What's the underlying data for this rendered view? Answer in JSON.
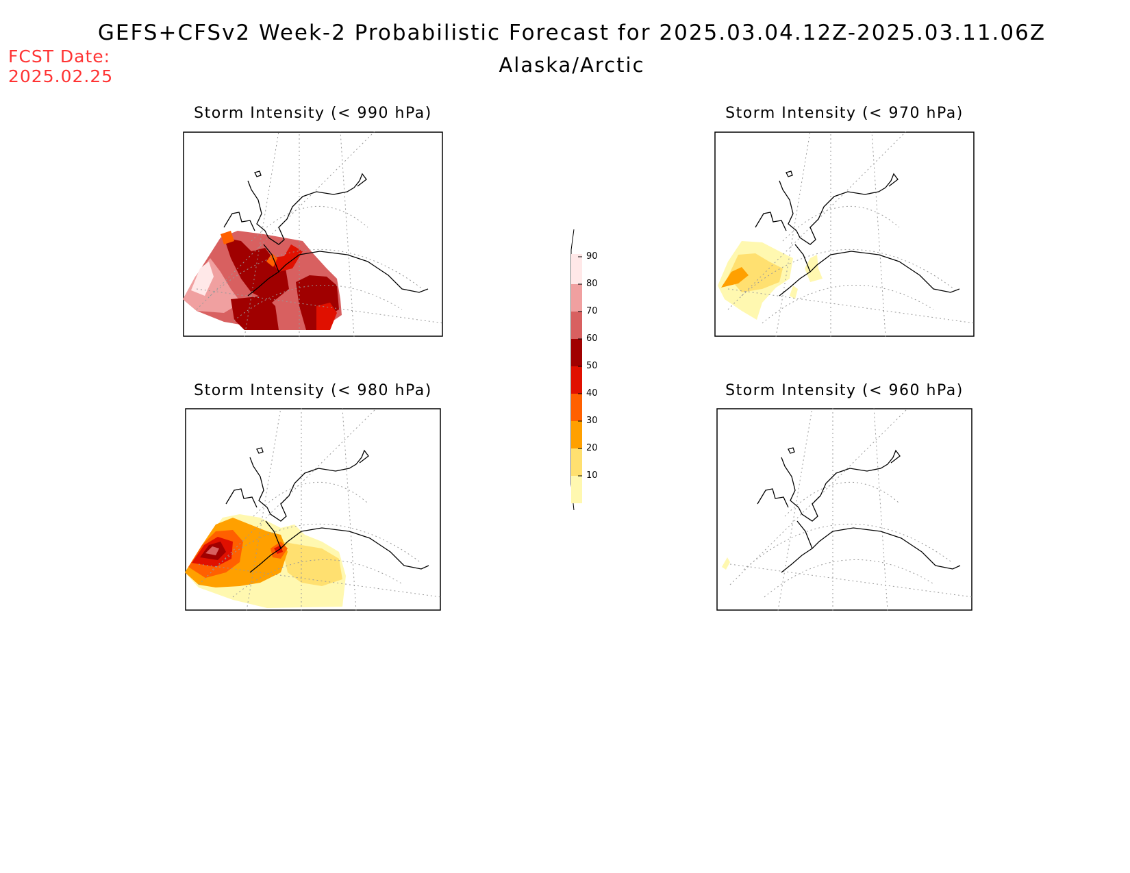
{
  "header": {
    "title": "GEFS+CFSv2 Week-2 Probabilistic Forecast for 2025.03.04.12Z-2025.03.11.06Z",
    "subtitle": "Alaska/Arctic",
    "fcst_label": "FCST Date:",
    "fcst_date": "2025.02.25"
  },
  "panels": [
    {
      "id": "p990",
      "title": "Storm Intensity (< 990 hPa)",
      "intensity": "high"
    },
    {
      "id": "p970",
      "title": "Storm Intensity (< 970 hPa)",
      "intensity": "low"
    },
    {
      "id": "p980",
      "title": "Storm Intensity (< 980 hPa)",
      "intensity": "medium"
    },
    {
      "id": "p960",
      "title": "Storm Intensity (< 960 hPa)",
      "intensity": "minimal"
    }
  ],
  "legend": {
    "levels": [
      "90",
      "80",
      "70",
      "60",
      "50",
      "40",
      "30",
      "20",
      "10"
    ],
    "colors": [
      "#ffe8e8",
      "#f0a0a0",
      "#d86060",
      "#a00000",
      "#e01000",
      "#ff6000",
      "#ffa000",
      "#ffe070",
      "#fff8b0"
    ]
  }
}
